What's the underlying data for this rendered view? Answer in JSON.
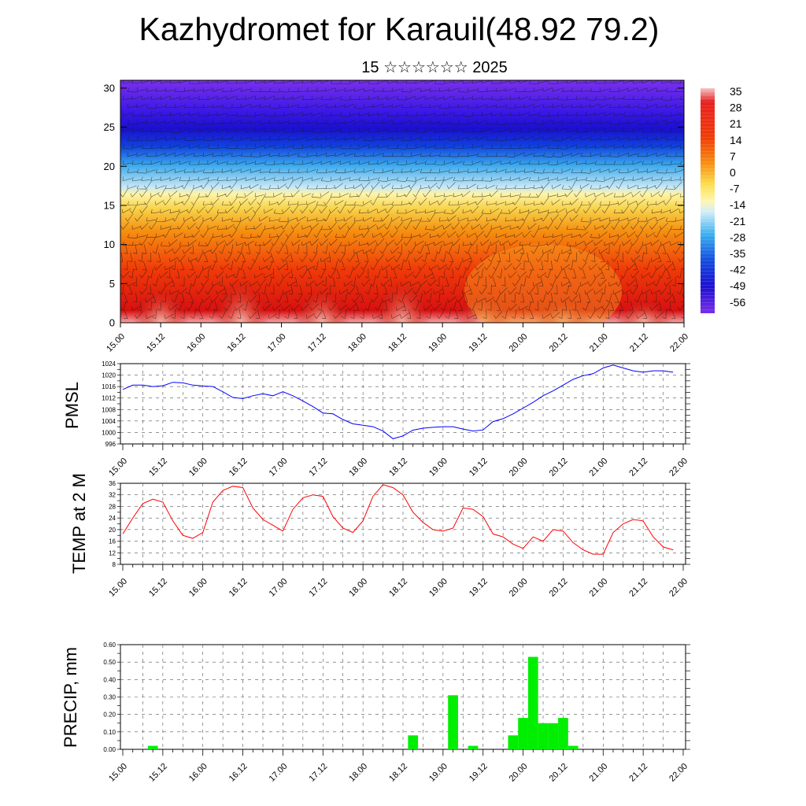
{
  "chart_data": [
    {
      "type": "heatmap",
      "title": "Kazhydromet for Karauil(48.92 79.2)",
      "subtitle": "15 ☆☆☆☆☆☆ 2025",
      "x_ticks": [
        "15.00",
        "15.12",
        "16.00",
        "16.12",
        "17.00",
        "17.12",
        "18.00",
        "18.12",
        "19.00",
        "19.12",
        "20.00",
        "20.12",
        "21.00",
        "21.12",
        "22.00"
      ],
      "y_ticks": [
        0,
        5,
        10,
        15,
        20,
        25,
        30
      ],
      "ylim": [
        0,
        31
      ],
      "colorbar_labels": [
        "35",
        "28",
        "21",
        "14",
        "7",
        "0",
        "-7",
        "-14",
        "-21",
        "-28",
        "-35",
        "-42",
        "-49",
        "-56"
      ],
      "wind_barbs": true
    },
    {
      "type": "line",
      "ylabel": "PMSL",
      "ylim": [
        996,
        1024
      ],
      "y_ticks": [
        996,
        1000,
        1004,
        1008,
        1012,
        1016,
        1020,
        1024
      ],
      "x_ticks": [
        "15.00",
        "15.12",
        "16.00",
        "16.12",
        "17.00",
        "17.12",
        "18.00",
        "18.12",
        "19.00",
        "19.12",
        "20.00",
        "20.12",
        "21.00",
        "21.12",
        "22.00"
      ],
      "color": "#0000ff",
      "x": [
        0,
        3,
        6,
        9,
        12,
        15,
        18,
        21,
        24,
        27,
        30,
        33,
        36,
        39,
        42,
        45,
        48,
        51,
        54,
        57,
        60,
        63,
        66,
        69,
        72,
        75,
        78,
        81,
        84,
        87,
        90,
        93,
        96,
        99,
        102,
        105,
        108,
        111,
        114,
        117,
        120,
        123,
        126,
        129,
        132,
        135,
        138,
        141,
        144,
        147,
        150,
        153,
        156,
        159,
        162,
        165
      ],
      "values": [
        1015,
        1016.5,
        1016.5,
        1016,
        1016.3,
        1017.5,
        1017.3,
        1016.5,
        1016.2,
        1016,
        1014.2,
        1012.2,
        1011.8,
        1012.8,
        1013.5,
        1012.8,
        1014.2,
        1012.8,
        1011,
        1009,
        1006.8,
        1006.5,
        1004.5,
        1003,
        1002.5,
        1002,
        1000.5,
        997.8,
        998.8,
        1000.8,
        1001.5,
        1001.8,
        1002,
        1002,
        1001.2,
        1000.5,
        1000.9,
        1003.8,
        1004.8,
        1006.5,
        1008.5,
        1010.5,
        1012.8,
        1014.5,
        1016.5,
        1018.5,
        1019.8,
        1020.5,
        1022.5,
        1023.5,
        1022.5,
        1021.5,
        1021,
        1021.5,
        1021.5,
        1021
      ]
    },
    {
      "type": "line",
      "ylabel": "TEMP at 2 M",
      "ylim": [
        8,
        36
      ],
      "y_ticks": [
        8,
        12,
        16,
        20,
        24,
        28,
        32,
        36
      ],
      "x_ticks": [
        "15.00",
        "15.12",
        "16.00",
        "16.12",
        "17.00",
        "17.12",
        "18.00",
        "18.12",
        "19.00",
        "19.12",
        "20.00",
        "20.12",
        "21.00",
        "21.12",
        "22.00"
      ],
      "color": "#ff0000",
      "x": [
        0,
        3,
        6,
        9,
        12,
        15,
        18,
        21,
        24,
        27,
        30,
        33,
        36,
        39,
        42,
        45,
        48,
        51,
        54,
        57,
        60,
        63,
        66,
        69,
        72,
        75,
        78,
        81,
        84,
        87,
        90,
        93,
        96,
        99,
        102,
        105,
        108,
        111,
        114,
        117,
        120,
        123,
        126,
        129,
        132,
        135,
        138,
        141,
        144,
        147,
        150,
        153,
        156,
        159,
        162,
        165
      ],
      "values": [
        18.5,
        24,
        29,
        30.5,
        29.5,
        23,
        18,
        17,
        19,
        29.5,
        33.5,
        35,
        34.5,
        27.5,
        23.5,
        21.5,
        19.5,
        27,
        31,
        32,
        31.5,
        24.5,
        20.5,
        19,
        23,
        31.5,
        35.5,
        34.5,
        32,
        26,
        22.5,
        20,
        19.5,
        20.5,
        27.5,
        27,
        24.5,
        18.5,
        17.5,
        15,
        13.5,
        17.5,
        16,
        20,
        19.5,
        15.5,
        13,
        11.5,
        11.5,
        19,
        22,
        23.5,
        23,
        17.5,
        14,
        13
      ]
    },
    {
      "type": "bar",
      "ylabel": "PRECIP, mm",
      "ylim": [
        0,
        0.6
      ],
      "y_tick_labels": [
        "0.00",
        "0.10",
        "0.20",
        "0.30",
        "0.40",
        "0.50",
        "0.60"
      ],
      "x_ticks": [
        "15.00",
        "15.12",
        "16.00",
        "16.12",
        "17.00",
        "17.12",
        "18.00",
        "18.12",
        "19.00",
        "19.12",
        "20.00",
        "20.12",
        "21.00",
        "21.12",
        "22.00"
      ],
      "bar_width_hours": 3,
      "color": "#00ee00",
      "x": [
        9,
        87,
        99,
        105,
        117,
        120,
        123,
        126,
        129,
        132,
        135
      ],
      "values": [
        0.02,
        0.08,
        0.31,
        0.02,
        0.08,
        0.18,
        0.53,
        0.15,
        0.15,
        0.18,
        0.02
      ]
    }
  ]
}
